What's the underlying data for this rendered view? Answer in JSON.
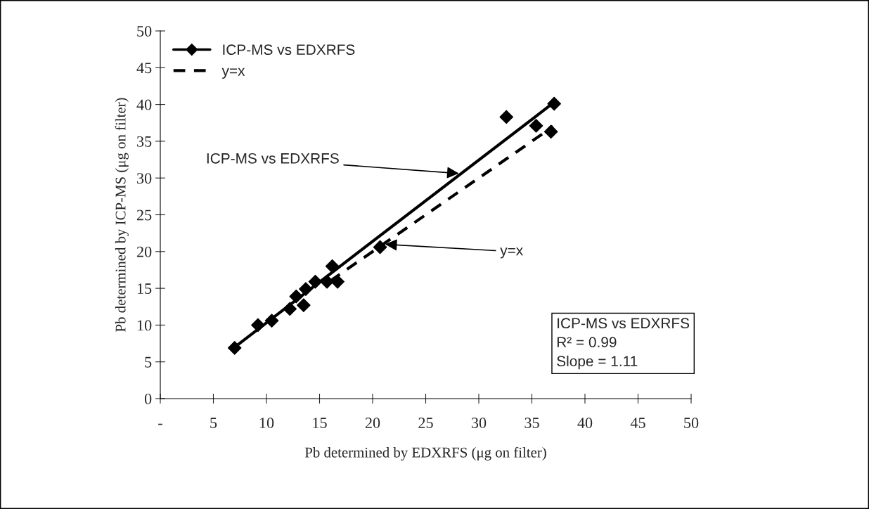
{
  "chart_data": {
    "type": "scatter",
    "xlabel": "Pb determined by EDXRFS (μg on filter)",
    "ylabel": "Pb determined by ICP-MS (μg on filter)",
    "series": [
      {
        "name": "ICP-MS vs EDXRFS",
        "color": "#000000",
        "marker": "diamond",
        "x": [
          7.0,
          9.2,
          10.5,
          12.2,
          12.8,
          13.5,
          13.7,
          14.6,
          15.7,
          16.2,
          16.7,
          20.7,
          32.6,
          35.4,
          36.8,
          37.1
        ],
        "values": [
          6.9,
          10.0,
          10.6,
          12.2,
          13.9,
          12.7,
          14.9,
          15.9,
          15.9,
          18.0,
          15.9,
          20.6,
          38.3,
          37.1,
          36.3,
          40.1
        ]
      },
      {
        "type": "line",
        "color": "#000000",
        "line_style": "solid",
        "x": [
          7.0,
          37.1
        ],
        "values": [
          7.0,
          40.3
        ]
      },
      {
        "name": "y=x",
        "type": "line",
        "color": "#000000",
        "line_style": "dashed",
        "x": [
          16.0,
          37.0
        ],
        "values": [
          16.0,
          37.0
        ]
      }
    ],
    "xlim": [
      0,
      50
    ],
    "ylim": [
      0,
      50
    ],
    "xticks": [
      {
        "value": 0,
        "label": "-"
      },
      5,
      10,
      15,
      20,
      25,
      30,
      35,
      40,
      45,
      50
    ],
    "yticks": [
      0,
      5,
      10,
      15,
      20,
      25,
      30,
      35,
      40,
      45,
      50
    ],
    "grid": false,
    "legend": "top left",
    "annotations": [
      {
        "text": "ICP-MS vs EDXRFS",
        "x": 28.3,
        "y": 30.6
      },
      {
        "text": "y=x",
        "x": 21.0,
        "y": 21.0
      },
      "ICP-MS vs EDXRFS\nR² = 0.99\nSlope = 1.11"
    ]
  }
}
